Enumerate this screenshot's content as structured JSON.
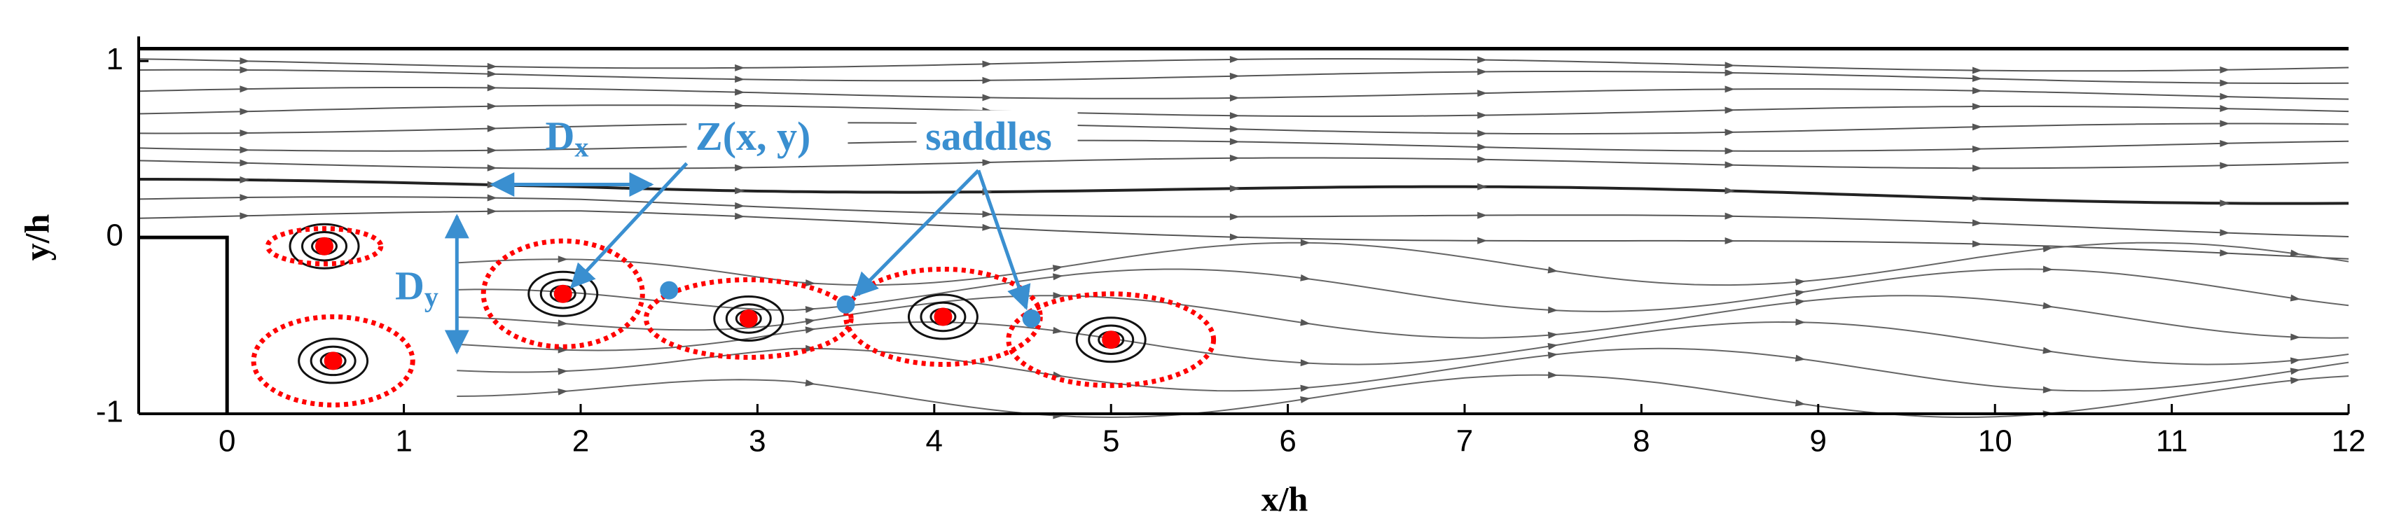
{
  "chart_data": {
    "type": "flow",
    "x_label": "x/h",
    "y_label": "y/h",
    "xlim": [
      -0.5,
      12
    ],
    "ylim": [
      -1,
      1.1
    ],
    "xticks": [
      0,
      1,
      2,
      3,
      4,
      5,
      6,
      7,
      8,
      9,
      10,
      11,
      12
    ],
    "yticks": [
      -1,
      0,
      1
    ],
    "vortex_centers": {
      "color": "#ff0000",
      "x": [
        0.55,
        0.6,
        1.9,
        2.95,
        4.05,
        5.0
      ],
      "y": [
        -0.05,
        -0.7,
        -0.32,
        -0.46,
        -0.45,
        -0.58
      ]
    },
    "saddles": {
      "color": "#3a8fd0",
      "x": [
        2.5,
        3.5,
        4.55
      ],
      "y": [
        -0.3,
        -0.38,
        -0.46
      ]
    },
    "annotations": {
      "dx": {
        "text": "D",
        "subscript": "x"
      },
      "dy": {
        "text": "D",
        "subscript": "y"
      },
      "z": "Z(x, y)",
      "saddles": "saddles"
    }
  }
}
